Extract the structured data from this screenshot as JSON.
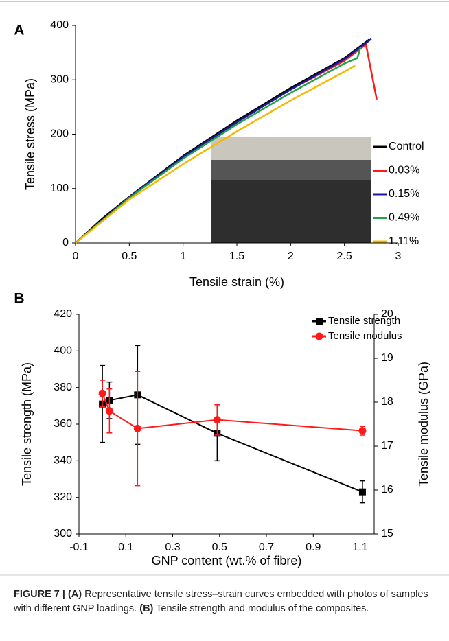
{
  "chart_data": [
    {
      "type": "line",
      "panel_label": "A",
      "x_label": "Tensile strain (%)",
      "y_label": "Tensile stress (MPa)",
      "xlim": [
        0,
        3
      ],
      "xticks": [
        0,
        0.5,
        1,
        1.5,
        2,
        2.5,
        3
      ],
      "ylim": [
        0,
        400
      ],
      "yticks": [
        0,
        100,
        200,
        300,
        400
      ],
      "legend": "right",
      "series": [
        {
          "name": "Control",
          "color": "#000000",
          "x": [
            0,
            0.25,
            0.5,
            1,
            1.5,
            2,
            2.5,
            2.73
          ],
          "values": [
            0,
            45,
            85,
            160,
            225,
            285,
            340,
            374
          ]
        },
        {
          "name": "0.03%",
          "color": "#ff1a1a",
          "x": [
            0,
            0.5,
            1,
            1.5,
            2,
            2.5,
            2.7,
            2.8
          ],
          "values": [
            0,
            84,
            158,
            222,
            282,
            335,
            365,
            264
          ]
        },
        {
          "name": "0.15%",
          "color": "#1a1aa0",
          "x": [
            0,
            0.5,
            1,
            1.5,
            2,
            2.5,
            2.75
          ],
          "values": [
            0,
            84,
            158,
            222,
            282,
            338,
            375
          ]
        },
        {
          "name": "0.49%",
          "color": "#1fa34a",
          "x": [
            0,
            0.5,
            1,
            1.5,
            2,
            2.5,
            2.62,
            2.65
          ],
          "values": [
            0,
            83,
            155,
            218,
            276,
            330,
            340,
            360
          ]
        },
        {
          "name": "1.11%",
          "color": "#f5b800",
          "x": [
            0,
            0.5,
            1,
            1.5,
            2,
            2.5,
            2.6
          ],
          "values": [
            0,
            80,
            145,
            205,
            262,
            315,
            326
          ]
        }
      ]
    },
    {
      "type": "line",
      "panel_label": "B",
      "x_label": "GNP content (wt.% of fibre)",
      "y_label": "Tensile strength (MPa)",
      "y2_label": "Tensile modulus (GPa)",
      "xlim": [
        -0.1,
        1.16
      ],
      "xticks": [
        -0.1,
        0.1,
        0.3,
        0.5,
        0.7,
        0.9,
        1.1
      ],
      "ylim": [
        300,
        420
      ],
      "yticks": [
        300,
        320,
        340,
        360,
        380,
        400,
        420
      ],
      "y2lim": [
        15,
        20
      ],
      "y2ticks": [
        15,
        16,
        17,
        18,
        19,
        20
      ],
      "legend": "upper right",
      "series": [
        {
          "name": "Tensile strength",
          "color": "#000000",
          "marker": "square",
          "x": [
            0,
            0.03,
            0.15,
            0.49,
            1.11
          ],
          "values": [
            371,
            373,
            376,
            355,
            323
          ],
          "errors": [
            21,
            10,
            27,
            15,
            6
          ]
        },
        {
          "name": "Tensile modulus",
          "color": "#ff1a1a",
          "marker": "circle",
          "axis": "y2",
          "x": [
            0,
            0.03,
            0.15,
            0.49,
            1.11
          ],
          "values": [
            18.2,
            17.8,
            17.4,
            17.6,
            17.35
          ],
          "errors": [
            0.3,
            0.5,
            1.3,
            0.35,
            0.1
          ]
        }
      ]
    }
  ],
  "caption": {
    "parts": [
      "FIGURE 7 | (A)",
      " Representative tensile stress–strain curves embedded with photos of samples with different GNP loadings. ",
      "(B)",
      " Tensile strength and modulus of the composites."
    ]
  }
}
